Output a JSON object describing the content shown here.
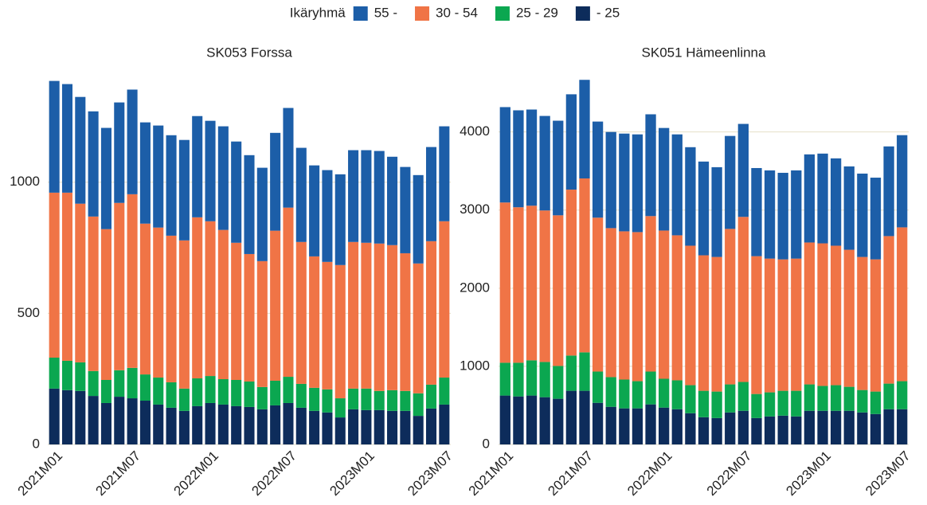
{
  "legend": {
    "title": "Ikäryhmä",
    "position": "top"
  },
  "chart_data": [
    {
      "type": "stacked_bar",
      "title": "SK053 Forssa",
      "categories": [
        "2021M01",
        null,
        null,
        null,
        null,
        null,
        "2021M07",
        null,
        null,
        null,
        null,
        null,
        "2022M01",
        null,
        null,
        null,
        null,
        null,
        "2022M07",
        null,
        null,
        null,
        null,
        null,
        "2023M01",
        null,
        null,
        null,
        null,
        null,
        "2023M07"
      ],
      "series": [
        {
          "name": "55 -",
          "color": "#1c5ea8",
          "values": [
            426,
            414,
            407,
            401,
            386,
            383,
            399,
            386,
            389,
            383,
            383,
            386,
            383,
            395,
            386,
            377,
            356,
            373,
            380,
            359,
            347,
            350,
            346,
            350,
            353,
            353,
            337,
            329,
            337,
            359,
            362
          ]
        },
        {
          "name": "30 - 54",
          "color": "#f07446",
          "values": [
            629,
            641,
            605,
            589,
            575,
            638,
            662,
            575,
            572,
            559,
            565,
            614,
            590,
            569,
            523,
            486,
            480,
            572,
            645,
            541,
            501,
            486,
            508,
            559,
            556,
            562,
            553,
            525,
            495,
            547,
            596
          ]
        },
        {
          "name": "25 - 29",
          "color": "#0ba750",
          "values": [
            118,
            112,
            109,
            95,
            88,
            101,
            116,
            100,
            103,
            97,
            85,
            106,
            103,
            97,
            100,
            97,
            85,
            94,
            100,
            91,
            88,
            88,
            73,
            79,
            82,
            73,
            79,
            76,
            86,
            91,
            103
          ]
        },
        {
          "name": "- 25",
          "color": "#0d2c5b",
          "values": [
            213,
            207,
            204,
            185,
            158,
            182,
            176,
            167,
            152,
            140,
            128,
            146,
            158,
            152,
            146,
            143,
            134,
            149,
            158,
            140,
            128,
            122,
            103,
            134,
            131,
            131,
            128,
            128,
            109,
            137,
            152
          ]
        }
      ],
      "ylim": [
        0,
        1400
      ],
      "yticks": [
        0,
        500,
        1000
      ],
      "grid": true
    },
    {
      "type": "stacked_bar",
      "title": "SK051 Hämeenlinna",
      "categories": [
        "2021M01",
        null,
        null,
        null,
        null,
        null,
        "2021M07",
        null,
        null,
        null,
        null,
        null,
        "2022M01",
        null,
        null,
        null,
        null,
        null,
        "2022M07",
        null,
        null,
        null,
        null,
        null,
        "2023M01",
        null,
        null,
        null,
        null,
        null,
        "2023M07"
      ],
      "series": [
        {
          "color": "#1c5ea8",
          "values": [
            1221,
            1241,
            1231,
            1210,
            1211,
            1220,
            1262,
            1230,
            1231,
            1251,
            1251,
            1303,
            1313,
            1292,
            1261,
            1200,
            1149,
            1190,
            1190,
            1128,
            1129,
            1108,
            1129,
            1128,
            1149,
            1118,
            1067,
            1067,
            1046,
            1148,
            1180
          ]
        },
        {
          "color": "#f07446",
          "values": [
            2051,
            1990,
            1979,
            1939,
            1928,
            2124,
            2226,
            1970,
            1907,
            1897,
            1908,
            1990,
            1897,
            1856,
            1785,
            1734,
            1723,
            1990,
            2113,
            1764,
            1712,
            1682,
            1692,
            1816,
            1825,
            1785,
            1754,
            1703,
            1692,
            1888,
            1969
          ]
        },
        {
          "color": "#0ba750",
          "values": [
            420,
            431,
            451,
            451,
            420,
            451,
            492,
            400,
            380,
            369,
            348,
            420,
            369,
            370,
            359,
            338,
            339,
            359,
            369,
            308,
            308,
            318,
            328,
            338,
            318,
            328,
            307,
            287,
            287,
            328,
            359
          ]
        },
        {
          "color": "#0d2c5b",
          "values": [
            626,
            615,
            626,
            605,
            585,
            687,
            687,
            533,
            482,
            462,
            462,
            513,
            472,
            451,
            400,
            349,
            338,
            410,
            431,
            338,
            359,
            369,
            359,
            431,
            431,
            431,
            431,
            410,
            390,
            451,
            451
          ]
        }
      ],
      "ylim": [
        0,
        4700
      ],
      "yticks": [
        0,
        1000,
        2000,
        3000,
        4000
      ],
      "grid": true
    }
  ]
}
